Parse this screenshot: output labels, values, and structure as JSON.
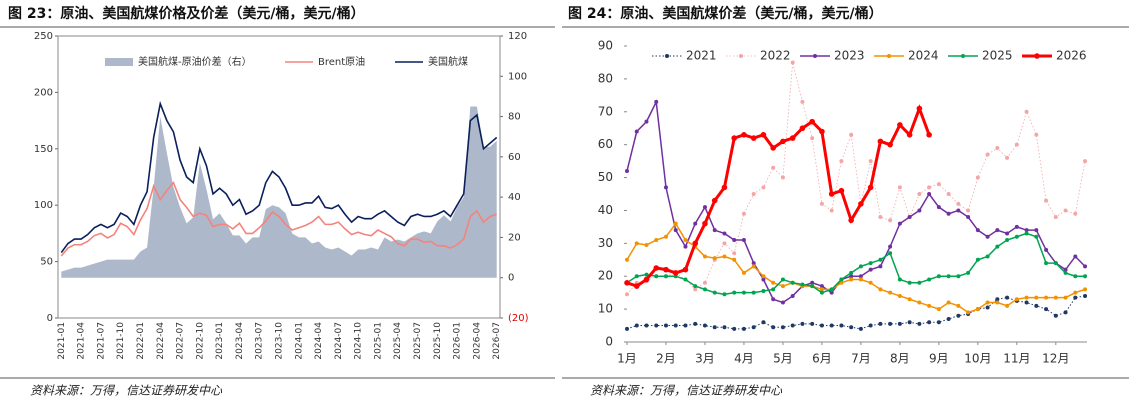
{
  "chart_data": [
    {
      "type": "combo",
      "title": "图 23：原油、美国航煤价格及价差（美元/桶，美元/桶）",
      "source": "资料来源：万得，信达证券研发中心",
      "categories": [
        "2021-01",
        null,
        null,
        "2021-04",
        null,
        null,
        "2021-07",
        null,
        null,
        "2021-10",
        null,
        null,
        "2022-01",
        null,
        null,
        "2022-04",
        null,
        null,
        "2022-07",
        null,
        null,
        "2022-10",
        null,
        null,
        "2023-01",
        null,
        null,
        "2023-04",
        null,
        null,
        "2023-07",
        null,
        null,
        "2023-10",
        null,
        null,
        "2024-01",
        null,
        null,
        "2024-04",
        null,
        null,
        "2024-07",
        null,
        null,
        "2024-10",
        null,
        null,
        "2025-01",
        null,
        null,
        "2025-04",
        null,
        null,
        "2025-07",
        null,
        null,
        "2025-10",
        null,
        null,
        "2026-01",
        null,
        null,
        "2026-04",
        null,
        null,
        "2026-07"
      ],
      "ylim": [
        0,
        250
      ],
      "yticks": [
        0,
        50,
        100,
        150,
        200,
        250
      ],
      "y2lim": [
        -20,
        120
      ],
      "y2ticks": [
        {
          "value": -20,
          "label": "(20)"
        },
        0,
        20,
        40,
        60,
        80,
        100,
        120
      ],
      "legend": "top",
      "series": [
        {
          "name": "美国航煤-原油价差（右）",
          "type": "area",
          "axis": "y2",
          "color": "#adb9ca",
          "values": [
            3,
            4,
            5,
            5,
            6,
            7,
            8,
            9,
            9,
            9,
            9,
            9,
            13,
            15,
            45,
            80,
            62,
            45,
            35,
            27,
            30,
            57,
            44,
            29,
            32,
            27,
            21,
            21,
            17,
            20,
            20,
            34,
            36,
            35,
            32,
            22,
            20,
            20,
            17,
            18,
            15,
            14,
            15,
            13,
            11,
            14,
            14,
            15,
            14,
            20,
            18,
            19,
            18,
            20,
            22,
            23,
            22,
            28,
            31,
            28,
            35,
            40,
            85,
            85,
            65,
            65,
            68
          ]
        },
        {
          "name": "Brent原油",
          "type": "line",
          "axis": "y",
          "color": "#f4837d",
          "values": [
            55,
            62,
            65,
            65,
            68,
            73,
            75,
            71,
            74,
            84,
            81,
            74,
            87,
            97,
            117,
            105,
            113,
            120,
            105,
            98,
            90,
            93,
            91,
            81,
            83,
            83,
            79,
            84,
            75,
            75,
            80,
            86,
            94,
            90,
            83,
            78,
            80,
            82,
            85,
            90,
            83,
            83,
            85,
            79,
            74,
            76,
            74,
            73,
            78,
            75,
            72,
            66,
            64,
            70,
            70,
            67,
            68,
            64,
            64,
            62,
            65,
            70,
            90,
            95,
            85,
            90,
            92
          ]
        },
        {
          "name": "美国航煤",
          "type": "line",
          "axis": "y",
          "color": "#0a1f5c",
          "values": [
            58,
            66,
            70,
            70,
            74,
            80,
            83,
            80,
            83,
            93,
            90,
            83,
            100,
            112,
            160,
            190,
            175,
            165,
            140,
            125,
            120,
            150,
            135,
            110,
            115,
            110,
            100,
            105,
            92,
            95,
            100,
            120,
            130,
            125,
            115,
            100,
            100,
            102,
            102,
            108,
            98,
            97,
            100,
            92,
            85,
            90,
            88,
            88,
            92,
            95,
            90,
            85,
            82,
            90,
            92,
            90,
            90,
            92,
            95,
            90,
            100,
            110,
            175,
            180,
            150,
            155,
            160
          ]
        }
      ]
    },
    {
      "type": "line",
      "title": "图 24：原油、美国航煤价差（美元/桶，美元/桶）",
      "source": "资料来源：万得，信达证券研发中心",
      "x": [
        1,
        1.25,
        1.5,
        1.75,
        2,
        2.25,
        2.5,
        2.75,
        3,
        3.25,
        3.5,
        3.75,
        4,
        4.25,
        4.5,
        4.75,
        5,
        5.25,
        5.5,
        5.75,
        6,
        6.25,
        6.5,
        6.75,
        7,
        7.25,
        7.5,
        7.75,
        8,
        8.25,
        8.5,
        8.75,
        9,
        9.25,
        9.5,
        9.75,
        10,
        10.25,
        10.5,
        10.75,
        11,
        11.25,
        11.5,
        11.75,
        12,
        12.25,
        12.5,
        12.75
      ],
      "xlim": [
        1,
        12.8
      ],
      "xticks": [
        {
          "value": 1,
          "label": "1月"
        },
        {
          "value": 2,
          "label": "2月"
        },
        {
          "value": 3,
          "label": "3月"
        },
        {
          "value": 4,
          "label": "4月"
        },
        {
          "value": 5,
          "label": "5月"
        },
        {
          "value": 6,
          "label": "6月"
        },
        {
          "value": 7,
          "label": "7月"
        },
        {
          "value": 8,
          "label": "8月"
        },
        {
          "value": 9,
          "label": "9月"
        },
        {
          "value": 10,
          "label": "10月"
        },
        {
          "value": 11,
          "label": "11月"
        },
        {
          "value": 12,
          "label": "12月"
        }
      ],
      "ylim": [
        0,
        90
      ],
      "yticks": [
        0,
        10,
        20,
        30,
        40,
        50,
        60,
        70,
        80,
        90
      ],
      "legend": "top",
      "series": [
        {
          "name": "2021",
          "color": "#1f3864",
          "line_style": "dotted",
          "line_width": 1,
          "values": [
            4,
            5,
            5,
            5,
            5,
            5,
            5,
            5.5,
            5,
            4.5,
            4.5,
            4,
            4,
            4.5,
            6,
            4.5,
            4.5,
            5,
            5.5,
            5.5,
            5,
            5,
            5,
            4.5,
            4,
            5,
            5.5,
            5.5,
            5.5,
            6,
            5.5,
            6,
            6,
            7,
            8,
            8.5,
            10,
            10.5,
            13,
            13.5,
            12.5,
            12,
            11,
            10,
            8,
            9,
            13.5,
            14
          ]
        },
        {
          "name": "2022",
          "color": "#f4a6a6",
          "line_style": "dotted",
          "line_width": 0.8,
          "values": [
            14.5,
            18,
            18.5,
            20,
            20,
            21,
            19,
            16,
            18,
            25,
            30,
            27,
            39,
            45,
            47,
            53,
            50,
            85,
            73,
            62,
            42,
            40,
            55,
            63,
            42,
            55,
            38,
            37,
            47,
            38,
            45,
            47,
            48,
            45,
            42,
            40,
            50,
            57,
            59,
            56,
            60,
            70,
            63,
            43,
            38,
            40,
            39,
            55
          ]
        },
        {
          "name": "2023",
          "color": "#7030a0",
          "line_style": "solid",
          "line_width": 1.5,
          "values": [
            52,
            64,
            67,
            73,
            47,
            34,
            29,
            36,
            41,
            34,
            33,
            31,
            31,
            24,
            19,
            13,
            12,
            14,
            17,
            18,
            17,
            15,
            19,
            20,
            20,
            22,
            23,
            29,
            36,
            38,
            40,
            45,
            41,
            39,
            40,
            38,
            34,
            32,
            34,
            33,
            35,
            34,
            34,
            28,
            24,
            22,
            26,
            23
          ]
        },
        {
          "name": "2024",
          "color": "#f39200",
          "line_style": "solid",
          "line_width": 1.5,
          "values": [
            25,
            30,
            29.5,
            31,
            32,
            36,
            31,
            29,
            26,
            25.5,
            26,
            25,
            21,
            23,
            20,
            18,
            17,
            18,
            17,
            17,
            16,
            16,
            18,
            19,
            19,
            18,
            16,
            15,
            14,
            13,
            12,
            11,
            10,
            12,
            11,
            9,
            10,
            12,
            12,
            11,
            13,
            13.5,
            13.5,
            13.5,
            13.5,
            13.5,
            15,
            16
          ]
        },
        {
          "name": "2025",
          "color": "#00a550",
          "line_style": "solid",
          "line_width": 1.5,
          "values": [
            18,
            20,
            20.5,
            20,
            20,
            20,
            19,
            17,
            16,
            15,
            14.5,
            15,
            15,
            15,
            15.5,
            16,
            19,
            18,
            17.5,
            17,
            15,
            16,
            19,
            21,
            23,
            24,
            25,
            27,
            19,
            18,
            18,
            19,
            20,
            20,
            20,
            21,
            25,
            26,
            29,
            31,
            32,
            33,
            32,
            24,
            24,
            21,
            20,
            20
          ]
        },
        {
          "name": "2026",
          "color": "#ff0000",
          "line_style": "solid",
          "line_width": 3,
          "values": [
            18,
            17,
            19,
            22.5,
            22,
            21,
            22,
            30,
            36,
            43,
            47,
            62,
            63,
            62,
            63,
            59,
            61,
            62,
            65,
            67,
            64,
            45,
            46,
            37,
            42,
            47,
            61,
            60,
            66,
            63,
            71,
            63,
            null,
            null,
            null,
            null,
            null,
            null,
            null,
            null,
            null,
            null,
            null,
            null,
            null,
            null,
            null,
            null
          ]
        }
      ]
    }
  ]
}
